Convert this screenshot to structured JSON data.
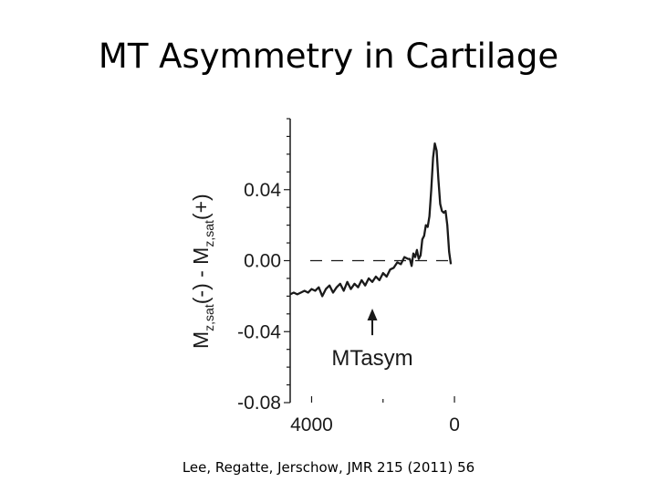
{
  "slide": {
    "title": "MT Asymmetry in Cartilage",
    "citation": "Lee, Regatte, Jerschow, JMR 215 (2011) 56"
  },
  "chart_data": {
    "type": "line",
    "title": "",
    "xlabel": "",
    "ylabel": {
      "part1": "M",
      "sub1": "z,sat",
      "part2": "(-) - M",
      "sub2": "z,sat",
      "part3": "(+)"
    },
    "xlim": [
      4600,
      -50
    ],
    "ylim": [
      -0.08,
      0.08
    ],
    "x_ticks": [
      4000,
      0
    ],
    "x_tick_labels": [
      "4000",
      "0"
    ],
    "y_ticks": [
      0.04,
      0.0,
      -0.04,
      -0.08
    ],
    "y_tick_labels": [
      "0.04",
      "0.00",
      "-0.04",
      "-0.08"
    ],
    "reference_line": {
      "y": 0.0,
      "style": "dashed"
    },
    "annotation": {
      "text": "MTasym",
      "arrow_x": 2300,
      "arrow_from_y": -0.042,
      "arrow_to_y": -0.027
    },
    "color": "#1a1a1a",
    "series": [
      {
        "x": [
          4600,
          4500,
          4400,
          4300,
          4200,
          4100,
          4000,
          3900,
          3800,
          3700,
          3600,
          3500,
          3400,
          3300,
          3200,
          3100,
          3000,
          2900,
          2800,
          2700,
          2600,
          2500,
          2400,
          2300,
          2200,
          2100,
          2000,
          1900,
          1800,
          1700,
          1600,
          1500,
          1400,
          1300,
          1250,
          1200,
          1150,
          1100,
          1050,
          1000,
          950,
          900,
          850,
          800,
          750,
          700,
          650,
          600,
          550,
          500,
          450,
          400,
          350,
          300,
          250,
          200,
          150,
          100
        ],
        "y": [
          -0.019,
          -0.018,
          -0.019,
          -0.018,
          -0.017,
          -0.018,
          -0.016,
          -0.017,
          -0.015,
          -0.02,
          -0.016,
          -0.014,
          -0.018,
          -0.015,
          -0.013,
          -0.017,
          -0.012,
          -0.016,
          -0.013,
          -0.015,
          -0.011,
          -0.014,
          -0.01,
          -0.012,
          -0.009,
          -0.011,
          -0.007,
          -0.009,
          -0.005,
          -0.004,
          -0.001,
          -0.002,
          0.002,
          0.001,
          0.001,
          -0.003,
          0.004,
          0.002,
          0.006,
          0.001,
          0.003,
          0.012,
          0.014,
          0.02,
          0.019,
          0.025,
          0.04,
          0.058,
          0.066,
          0.062,
          0.046,
          0.032,
          0.028,
          0.027,
          0.028,
          0.02,
          0.005,
          -0.002
        ]
      }
    ]
  }
}
